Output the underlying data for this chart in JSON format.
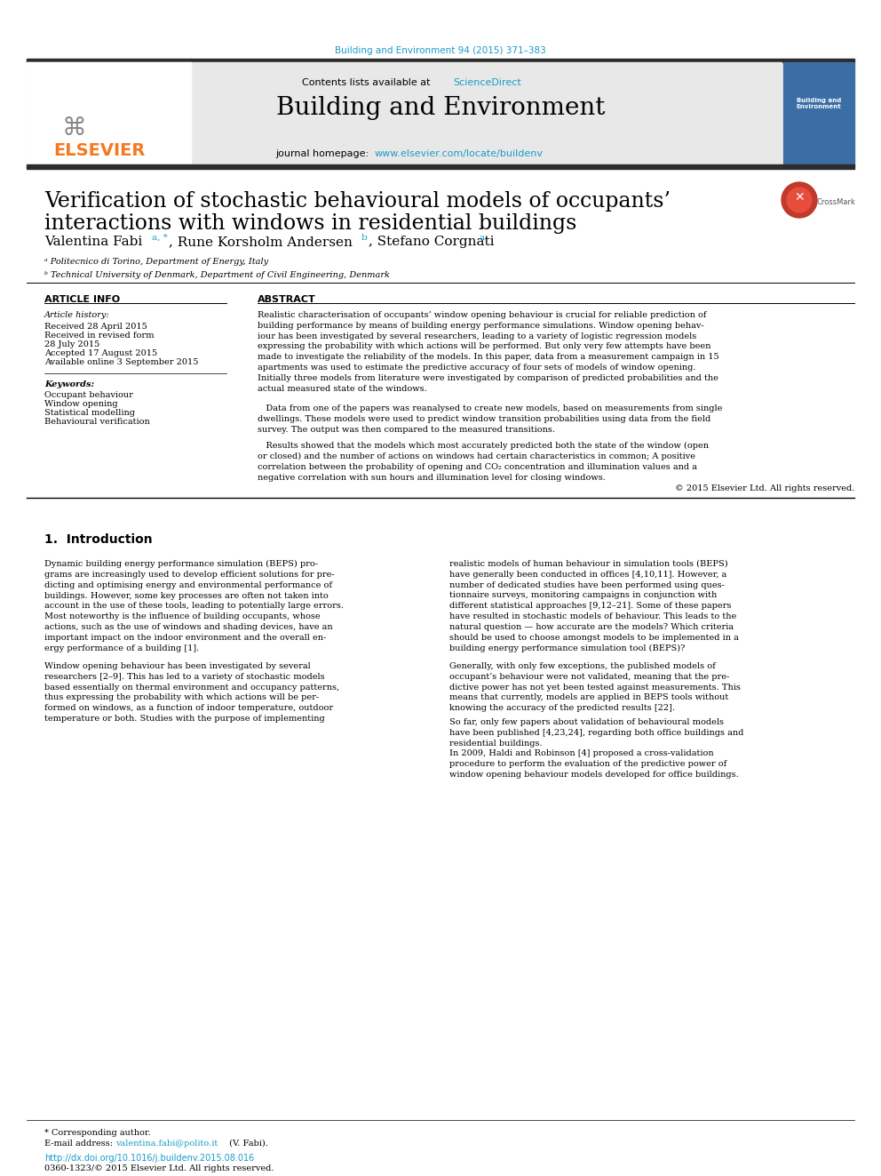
{
  "bg_color": "#ffffff",
  "journal_ref_text": "Building and Environment 94 (2015) 371–383",
  "journal_ref_color": "#1a9bc9",
  "header_bg": "#e8e8e8",
  "header_title": "Building and Environment",
  "contents_text": "Contents lists available at ",
  "sciencedirect_text": "ScienceDirect",
  "sciencedirect_color": "#1a9bc9",
  "journal_homepage_text": "journal homepage: ",
  "journal_url": "www.elsevier.com/locate/buildenv",
  "journal_url_color": "#1a9bc9",
  "article_title_line1": "Verification of stochastic behavioural models of occupants’",
  "article_title_line2": "interactions with windows in residential buildings",
  "authors": "Valentina Fabi ᵃ, *, Rune Korsholm Andersen ᵇ, Stefano Corgnati ᵃ",
  "affil_a": "ᵃ Politecnico di Torino, Department of Energy, Italy",
  "affil_b": "ᵇ Technical University of Denmark, Department of Civil Engineering, Denmark",
  "article_info_title": "ARTICLE INFO",
  "abstract_title": "ABSTRACT",
  "article_history_label": "Article history:",
  "received": "Received 28 April 2015",
  "received_revised": "Received in revised form",
  "revised_date": "28 July 2015",
  "accepted": "Accepted 17 August 2015",
  "available": "Available online 3 September 2015",
  "keywords_label": "Keywords:",
  "keyword1": "Occupant behaviour",
  "keyword2": "Window opening",
  "keyword3": "Statistical modelling",
  "keyword4": "Behavioural verification",
  "abstract_p1": "Realistic characterisation of occupants’ window opening behaviour is crucial for reliable prediction of\nbuilding performance by means of building energy performance simulations. Window opening behav-\niour has been investigated by several researchers, leading to a variety of logistic regression models\nexpressing the probability with which actions will be performed. But only very few attempts have been\nmade to investigate the reliability of the models. In this paper, data from a measurement campaign in 15\napartments was used to estimate the predictive accuracy of four sets of models of window opening.\nInitially three models from literature were investigated by comparison of predicted probabilities and the\nactual measured state of the windows.",
  "abstract_p2": "   Data from one of the papers was reanalysed to create new models, based on measurements from single\ndwellings. These models were used to predict window transition probabilities using data from the field\nsurvey. The output was then compared to the measured transitions.",
  "abstract_p3": "   Results showed that the models which most accurately predicted both the state of the window (open\nor closed) and the number of actions on windows had certain characteristics in common; A positive\ncorrelation between the probability of opening and CO₂ concentration and illumination values and a\nnegative correlation with sun hours and illumination level for closing windows.",
  "copyright": "© 2015 Elsevier Ltd. All rights reserved.",
  "section1_title": "1.  Introduction",
  "intro_col1_p1": "Dynamic building energy performance simulation (BEPS) pro-\ngrams are increasingly used to develop efficient solutions for pre-\ndicting and optimising energy and environmental performance of\nbuildings. However, some key processes are often not taken into\naccount in the use of these tools, leading to potentially large errors.\nMost noteworthy is the influence of building occupants, whose\nactions, such as the use of windows and shading devices, have an\nimportant impact on the indoor environment and the overall en-\nergy performance of a building [1].",
  "intro_col1_p2": "Window opening behaviour has been investigated by several\nresearchers [2–9]. This has led to a variety of stochastic models\nbased essentially on thermal environment and occupancy patterns,\nthus expressing the probability with which actions will be per-\nformed on windows, as a function of indoor temperature, outdoor\ntemperature or both. Studies with the purpose of implementing",
  "intro_col2_p1": "realistic models of human behaviour in simulation tools (BEPS)\nhave generally been conducted in offices [4,10,11]. However, a\nnumber of dedicated studies have been performed using ques-\ntionnaire surveys, monitoring campaigns in conjunction with\ndifferent statistical approaches [9,12–21]. Some of these papers\nhave resulted in stochastic models of behaviour. This leads to the\nnatural question — how accurate are the models? Which criteria\nshould be used to choose amongst models to be implemented in a\nbuilding energy performance simulation tool (BEPS)?",
  "intro_col2_p2": "Generally, with only few exceptions, the published models of\noccupant’s behaviour were not validated, meaning that the pre-\ndictive power has not yet been tested against measurements. This\nmeans that currently, models are applied in BEPS tools without\nknowing the accuracy of the predicted results [22].",
  "intro_col2_p3": "So far, only few papers about validation of behavioural models\nhave been published [4,23,24], regarding both office buildings and\nresidential buildings.",
  "intro_col2_p4": "In 2009, Haldi and Robinson [4] proposed a cross-validation\nprocedure to perform the evaluation of the predictive power of\nwindow opening behaviour models developed for office buildings.",
  "footnote_star": "* Corresponding author.",
  "footnote_email": "E-mail address: valentina.fabi@polito.it (V. Fabi).",
  "doi_text": "http://dx.doi.org/10.1016/j.buildenv.2015.08.016",
  "issn_text": "0360-1323/© 2015 Elsevier Ltd. All rights reserved.",
  "elsevier_orange": "#f47920",
  "link_color": "#1a9bc9",
  "dark_bar_color": "#2c2c2c",
  "text_color": "#000000",
  "small_text_color": "#333333"
}
